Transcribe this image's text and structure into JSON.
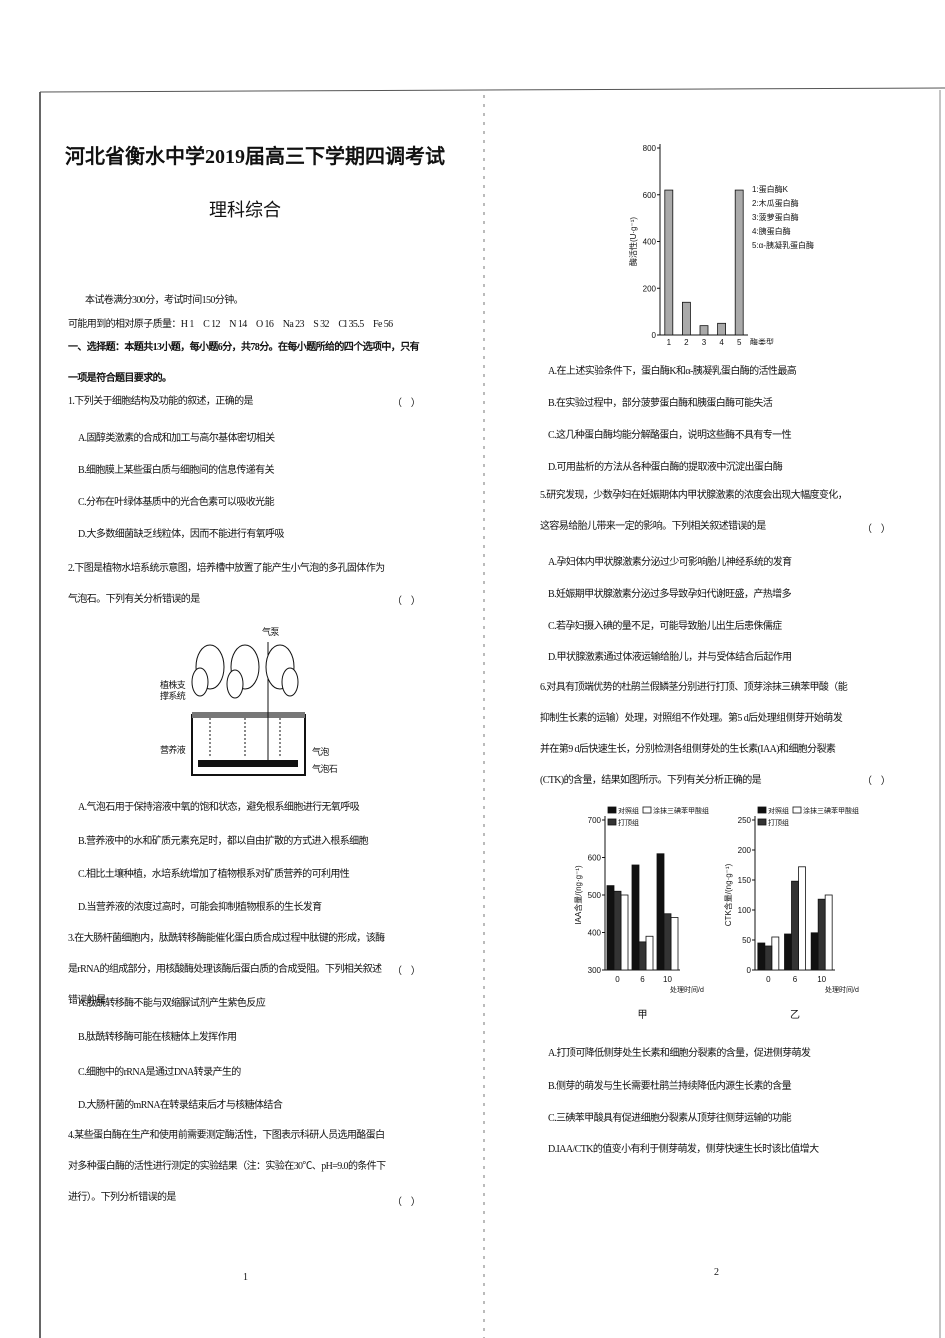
{
  "document": {
    "header": {
      "title": "河北省衡水中学2019届高三下学期四调考试",
      "subtitle": "理科综合"
    },
    "intro": [
      "本试卷满分300分，考试时间150分钟。",
      "可能用到的相对原子质量：H 1　C 12　N 14　O 16　Na 23　S 32　Cl 35.5　Fe 56"
    ],
    "section": "一、选择题：本题共13小题，每小题6分，共78分。在每小题所给的四个选项中，只有一项是符合题目要求的。",
    "questions": [
      {
        "stem": "1.下列关于细胞结构及功能的叙述，正确的是",
        "paren": "（　）",
        "options": [
          "A.固醇类激素的合成和加工与高尔基体密切相关",
          "B.细胞膜上某些蛋白质与细胞间的信息传递有关",
          "C.分布在叶绿体基质中的光合色素可以吸收光能",
          "D.大多数细菌缺乏线粒体，因而不能进行有氧呼吸"
        ]
      },
      {
        "stem": "2.下图是植物水培系统示意图，培养槽中放置了能产生小气泡的多孔固体作为气泡石。下列有关分析错误的是",
        "paren": "（　）",
        "figure_labels": [
          "气泵",
          "植株支撑系统",
          "营养液",
          "气泡",
          "气泡石"
        ],
        "options": [
          "A.气泡石用于保持溶液中氧的饱和状态，避免根系细胞进行无氧呼吸",
          "B.营养液中的水和矿质元素充足时，都以自由扩散的方式进入根系细胞",
          "C.相比土壤种植，水培系统增加了植物根系对矿质营养的可利用性",
          "D.当营养液的浓度过高时，可能会抑制植物根系的生长发育"
        ]
      },
      {
        "stem": "3.在大肠杆菌细胞内，肽酰转移酶能催化蛋白质合成过程中肽键的形成，该酶是rRNA的组成部分，用核酸酶处理该酶后蛋白质的合成受阻。下列相关叙述错误的是",
        "paren": "（　）",
        "options": [
          "A.肽酰转移酶不能与双缩脲试剂产生紫色反应",
          "B.肽酰转移酶可能在核糖体上发挥作用",
          "C.细胞中的rRNA是通过DNA转录产生的",
          "D.大肠杆菌的mRNA在转录结束后才与核糖体结合"
        ]
      },
      {
        "stem": "4.某些蛋白酶在生产和使用前需要测定酶活性，下图表示科研人员选用酪蛋白对多种蛋白酶的活性进行测定的实验结果（注：实验在30℃、pH=9.0的条件下进行）。下列分析错误的是",
        "paren": "（　）",
        "options": [
          "A.在上述实验条件下，蛋白酶K和α-胰凝乳蛋白酶的活性最高",
          "B.在实验过程中，部分菠萝蛋白酶和胰蛋白酶可能失活",
          "C.这几种蛋白酶均能分解酪蛋白，说明这些酶不具有专一性",
          "D.可用盐析的方法从各种蛋白酶的提取液中沉淀出蛋白酶"
        ]
      },
      {
        "stem": "5.研究发现，少数孕妇在妊娠期体内甲状腺激素的浓度会出现大幅度变化，这容易给胎儿带来一定的影响。下列相关叙述错误的是",
        "paren": "（　）",
        "options": [
          "A.孕妇体内甲状腺激素分泌过少可影响胎儿神经系统的发育",
          "B.妊娠期甲状腺激素分泌过多导致孕妇代谢旺盛，产热增多",
          "C.若孕妇摄入碘的量不足，可能导致胎儿出生后患侏儒症",
          "D.甲状腺激素通过体液运输给胎儿，并与受体结合后起作用"
        ]
      },
      {
        "stem": "6.对具有顶端优势的杜鹃兰假鳞茎分别进行打顶、顶芽涂抹三碘苯甲酸（能抑制生长素的运输）处理，对照组不作处理。第5 d后处理组侧芽开始萌发并在第9 d后快速生长，分别检测各组侧芽处的生长素(IAA)和细胞分裂素(CTK)的含量，结果如图所示。下列有关分析正确的是",
        "paren": "（　）",
        "options": [
          "A.打顶可降低侧芽处生长素和细胞分裂素的含量，促进侧芽萌发",
          "B.侧芽的萌发与生长需要杜鹃兰持续降低内源生长素的含量",
          "C.三碘苯甲酸具有促进细胞分裂素从顶芽往侧芽运输的功能",
          "D.IAA/CTK的值变小有利于侧芽萌发，侧芽快速生长时该比值增大"
        ]
      }
    ],
    "page_numbers": [
      "1",
      "2"
    ]
  },
  "chart_data": [
    {
      "type": "bar",
      "y_label": "酶活性(U·g⁻¹)",
      "x_label": "酶类型",
      "categories": [
        "1",
        "2",
        "3",
        "4",
        "5"
      ],
      "values": [
        620,
        140,
        40,
        50,
        620
      ],
      "color": "#aaaaaa",
      "ylim": [
        0,
        800
      ],
      "yticks": [
        0,
        200,
        400,
        600,
        800
      ],
      "category_names": [
        "1:蛋白酶K",
        "2:木瓜蛋白酶",
        "3:菠萝蛋白酶",
        "4:胰蛋白酶",
        "5:α-胰凝乳蛋白酶"
      ]
    },
    {
      "type": "grouped_bar",
      "label": "甲",
      "y_label": "IAA含量/(ng·g⁻¹)",
      "x_label": "处理时间/d",
      "categories": [
        "0",
        "6",
        "10"
      ],
      "series": [
        {
          "name": "对照组",
          "color": "#111111",
          "values": [
            525,
            580,
            610
          ]
        },
        {
          "name": "涂抹三碘苯甲酸组",
          "color": "#ffffff",
          "values": [
            500,
            390,
            440
          ]
        },
        {
          "name": "打顶组",
          "color": "#333333",
          "values": [
            510,
            375,
            450
          ]
        }
      ],
      "ylim": [
        300,
        700
      ],
      "yticks": [
        300,
        400,
        500,
        600,
        700
      ]
    },
    {
      "type": "grouped_bar",
      "label": "乙",
      "y_label": "CTK含量/(ng·g⁻¹)",
      "x_label": "处理时间/d",
      "categories": [
        "0",
        "6",
        "10"
      ],
      "series": [
        {
          "name": "对照组",
          "color": "#111111",
          "values": [
            45,
            60,
            62
          ]
        },
        {
          "name": "涂抹三碘苯甲酸组",
          "color": "#ffffff",
          "values": [
            55,
            172,
            125
          ]
        },
        {
          "name": "打顶组",
          "color": "#333333",
          "values": [
            40,
            148,
            118
          ]
        }
      ],
      "ylim": [
        0,
        250
      ],
      "yticks": [
        0,
        50,
        100,
        150,
        200,
        250
      ]
    }
  ]
}
